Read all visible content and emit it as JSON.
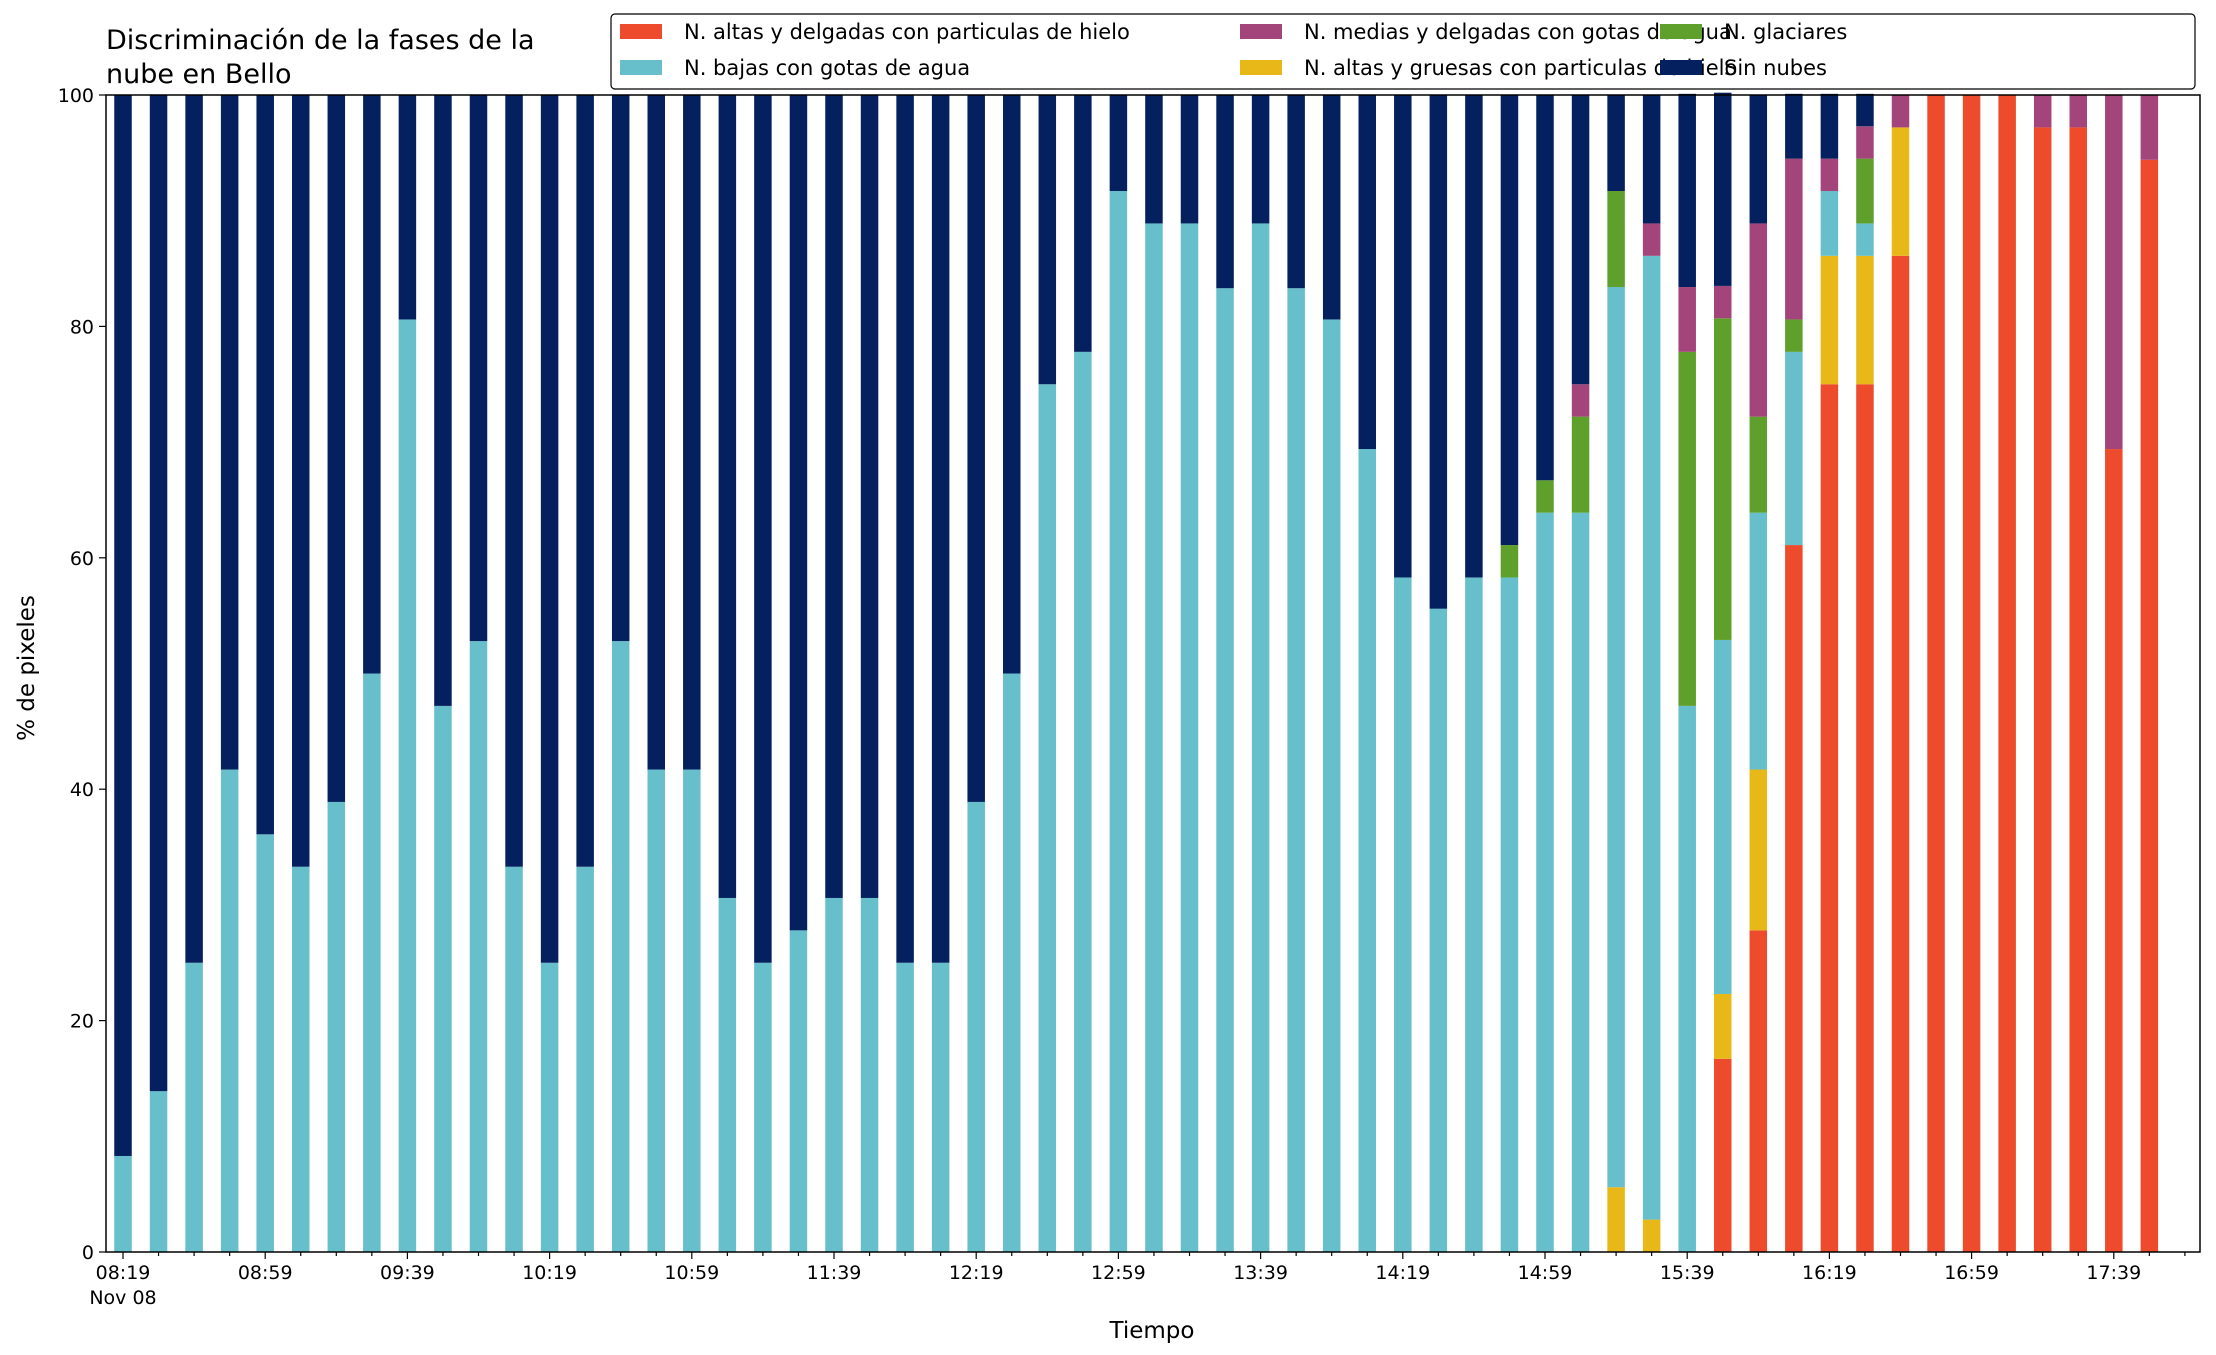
{
  "chart_data": {
    "type": "bar",
    "stacked": true,
    "title": [
      "Discriminación de la fases de la",
      "nube en Bello"
    ],
    "xlabel": "Tiempo",
    "ylabel": "% de pixeles",
    "ylim": [
      0,
      100
    ],
    "yticks": [
      "0",
      "20",
      "40",
      "60",
      "80",
      "100"
    ],
    "xtick_labels": [
      "08:19",
      "08:59",
      "09:39",
      "10:19",
      "10:59",
      "11:39",
      "12:19",
      "12:59",
      "13:39",
      "14:19",
      "14:59",
      "15:39",
      "16:19",
      "16:59",
      "17:39"
    ],
    "xtick_sublabel": "Nov 08",
    "grid": false,
    "legend_placement": "top-right",
    "legend_columns": 3,
    "categories": [
      "08:19",
      "08:29",
      "08:39",
      "08:49",
      "08:59",
      "09:09",
      "09:19",
      "09:29",
      "09:39",
      "09:49",
      "09:59",
      "10:09",
      "10:19",
      "10:29",
      "10:39",
      "10:49",
      "10:59",
      "11:09",
      "11:19",
      "11:29",
      "11:39",
      "11:49",
      "11:59",
      "12:09",
      "12:19",
      "12:29",
      "12:39",
      "12:49",
      "12:59",
      "13:09",
      "13:19",
      "13:29",
      "13:39",
      "13:49",
      "13:59",
      "14:09",
      "14:19",
      "14:29",
      "14:39",
      "14:49",
      "14:59",
      "15:09",
      "15:19",
      "15:29",
      "15:39",
      "15:49",
      "15:59",
      "16:09",
      "16:19",
      "16:29",
      "16:39",
      "16:49",
      "16:59",
      "17:09",
      "17:19",
      "17:29",
      "17:39",
      "17:49"
    ],
    "series": [
      {
        "name": "N. altas y delgadas con particulas de hielo",
        "color": "#ee4a2c",
        "values": [
          0,
          0,
          0,
          0,
          0,
          0,
          0,
          0,
          0,
          0,
          0,
          0,
          0,
          0,
          0,
          0,
          0,
          0,
          0,
          0,
          0,
          0,
          0,
          0,
          0,
          0,
          0,
          0,
          0,
          0,
          0,
          0,
          0,
          0,
          0,
          0,
          0,
          0,
          0,
          0,
          0,
          0,
          0,
          0,
          0,
          16.7,
          27.8,
          61.1,
          75.0,
          75.0,
          86.1,
          100,
          100,
          100,
          97.2,
          97.2,
          69.4,
          94.4
        ]
      },
      {
        "name": "N. altas y gruesas con particulas de hielo",
        "color": "#e8b818",
        "values": [
          0,
          0,
          0,
          0,
          0,
          0,
          0,
          0,
          0,
          0,
          0,
          0,
          0,
          0,
          0,
          0,
          0,
          0,
          0,
          0,
          0,
          0,
          0,
          0,
          0,
          0,
          0,
          0,
          0,
          0,
          0,
          0,
          0,
          0,
          0,
          0,
          0,
          0,
          0,
          0,
          0,
          0,
          5.6,
          2.8,
          0,
          5.6,
          13.9,
          0,
          11.1,
          11.1,
          11.1,
          0,
          0,
          0,
          0,
          0,
          0,
          0
        ]
      },
      {
        "name": "N. bajas con gotas de agua",
        "color": "#66bfca",
        "values": [
          8.3,
          13.9,
          25.0,
          41.7,
          36.1,
          33.3,
          38.9,
          50.0,
          80.6,
          47.2,
          52.8,
          33.3,
          25.0,
          33.3,
          52.8,
          41.7,
          41.7,
          30.6,
          25.0,
          27.8,
          30.6,
          30.6,
          25.0,
          25.0,
          38.9,
          50.0,
          75.0,
          77.8,
          91.7,
          88.9,
          88.9,
          83.3,
          88.9,
          83.3,
          80.6,
          69.4,
          58.3,
          55.6,
          58.3,
          58.3,
          63.9,
          63.9,
          77.8,
          83.3,
          47.2,
          30.6,
          22.2,
          16.7,
          5.6,
          2.8,
          0,
          0,
          0,
          0,
          0,
          0,
          0,
          0
        ]
      },
      {
        "name": "N. glaciares",
        "color": "#5fa02c",
        "values": [
          0,
          0,
          0,
          0,
          0,
          0,
          0,
          0,
          0,
          0,
          0,
          0,
          0,
          0,
          0,
          0,
          0,
          0,
          0,
          0,
          0,
          0,
          0,
          0,
          0,
          0,
          0,
          0,
          0,
          0,
          0,
          0,
          0,
          0,
          0,
          0,
          0,
          0,
          0,
          2.8,
          2.8,
          8.3,
          8.3,
          0,
          30.6,
          27.8,
          8.3,
          2.8,
          0,
          5.6,
          0,
          0,
          0,
          0,
          0,
          0,
          0,
          0
        ]
      },
      {
        "name": "N. medias y delgadas con gotas de agua",
        "color": "#a3447a",
        "values": [
          0,
          0,
          0,
          0,
          0,
          0,
          0,
          0,
          0,
          0,
          0,
          0,
          0,
          0,
          0,
          0,
          0,
          0,
          0,
          0,
          0,
          0,
          0,
          0,
          0,
          0,
          0,
          0,
          0,
          0,
          0,
          0,
          0,
          0,
          0,
          0,
          0,
          0,
          0,
          0,
          0,
          2.8,
          0,
          2.8,
          5.6,
          2.8,
          16.7,
          13.9,
          2.8,
          2.8,
          2.8,
          0,
          0,
          0,
          2.8,
          2.8,
          30.6,
          5.6
        ]
      },
      {
        "name": "Sin nubes",
        "color": "#04205e",
        "values": [
          91.7,
          86.1,
          75.0,
          58.3,
          63.9,
          66.7,
          61.1,
          50.0,
          19.4,
          52.8,
          47.2,
          66.7,
          75.0,
          66.7,
          47.2,
          58.3,
          58.3,
          69.4,
          75.0,
          72.2,
          69.4,
          69.4,
          75.0,
          75.0,
          61.1,
          50.0,
          25.0,
          22.2,
          8.3,
          11.1,
          11.1,
          16.7,
          11.1,
          16.7,
          19.4,
          30.6,
          41.7,
          44.4,
          41.7,
          38.9,
          33.3,
          25.0,
          8.3,
          11.1,
          16.7,
          16.7,
          11.1,
          5.6,
          5.6,
          2.8,
          0,
          0,
          0,
          0,
          0,
          0,
          0,
          0
        ]
      }
    ],
    "legend_order": [
      0,
      2,
      4,
      1,
      3,
      5
    ]
  }
}
